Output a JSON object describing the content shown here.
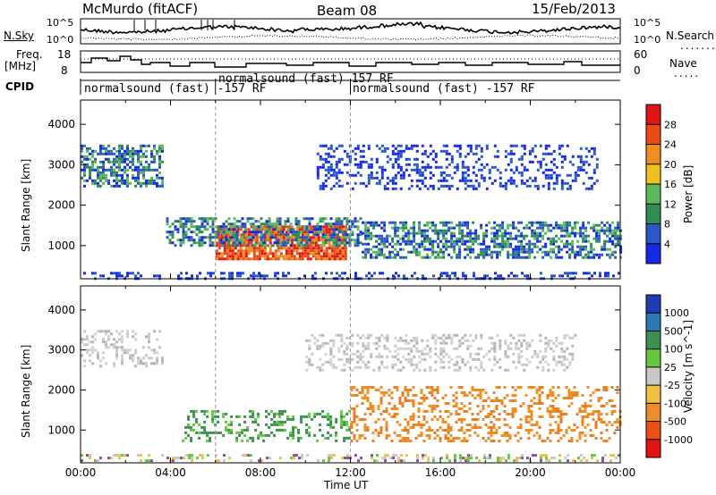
{
  "header": {
    "station": "McMurdo (fitACF)",
    "beam": "Beam 08",
    "date": "15/Feb/2013"
  },
  "top_panels": {
    "nsky_label": "N.Sky",
    "nsearch_label": "N.Search",
    "nsky_ticks": [
      "10^5",
      "10^0"
    ],
    "nsearch_ticks": [
      "10^5",
      "10^0"
    ],
    "freq_label_line1": "Freq.",
    "freq_label_line2": "[MHz]",
    "freq_ticks": [
      "18",
      "8"
    ],
    "nave_label": "Nave",
    "nave_ticks": [
      "60",
      "0"
    ],
    "cpid_label": "CPID",
    "cpid_segments": [
      "normalsound (fast) -157 RF",
      "normalsound (fast) 157 RF",
      "normalsound (fast) -157 RF"
    ]
  },
  "x_axis": {
    "label": "Time UT",
    "ticks": [
      "00:00",
      "04:00",
      "08:00",
      "12:00",
      "16:00",
      "20:00",
      "00:00"
    ]
  },
  "chart_data": [
    {
      "type": "heatmap",
      "title": "Power",
      "ylabel": "Slant Range [km]",
      "xlabel": "",
      "y_ticks": [
        1000,
        2000,
        3000,
        4000
      ],
      "ylim": [
        180,
        4600
      ],
      "x_range_hours": [
        0,
        24
      ],
      "colorbar_label": "Power [dB]",
      "colorbar_ticks": [
        4,
        8,
        12,
        16,
        20,
        24,
        28
      ],
      "colorbar_colors": [
        "#1428e6",
        "#2a58c8",
        "#2f8c55",
        "#5cb85c",
        "#f0c020",
        "#f08c20",
        "#ea4a14",
        "#e01414"
      ],
      "echo_regions": [
        {
          "t0": 6.0,
          "t1": 11.8,
          "r0": 650,
          "r1": 1500,
          "level": "high"
        },
        {
          "t0": 3.8,
          "t1": 12.5,
          "r0": 1000,
          "r1": 1700,
          "level": "mid"
        },
        {
          "t0": 12.5,
          "t1": 24.0,
          "r0": 700,
          "r1": 1600,
          "level": "mid"
        },
        {
          "t0": 0.0,
          "t1": 3.6,
          "r0": 2500,
          "r1": 3500,
          "level": "mid"
        },
        {
          "t0": 10.5,
          "t1": 23.0,
          "r0": 2400,
          "r1": 3500,
          "level": "low"
        },
        {
          "t0": 0.0,
          "t1": 24.0,
          "r0": 200,
          "r1": 350,
          "level": "low"
        }
      ]
    },
    {
      "type": "heatmap",
      "title": "Velocity",
      "ylabel": "Slant Range [km]",
      "xlabel": "Time UT",
      "y_ticks": [
        1000,
        2000,
        3000,
        4000
      ],
      "ylim": [
        180,
        4600
      ],
      "x_range_hours": [
        0,
        24
      ],
      "colorbar_label": "Velocity [m s^-1]",
      "colorbar_ticks": [
        1000,
        500,
        100,
        25,
        -25,
        -100,
        -500,
        -1000
      ],
      "colorbar_colors": [
        "#1e3cb4",
        "#2a78b4",
        "#3c9050",
        "#64c840",
        "#c8c8c8",
        "#f0c040",
        "#f08c28",
        "#ec5014",
        "#e01414"
      ],
      "echo_regions": [
        {
          "t0": 4.5,
          "t1": 12.0,
          "r0": 700,
          "r1": 1500,
          "level": "positive"
        },
        {
          "t0": 12.0,
          "t1": 24.0,
          "r0": 750,
          "r1": 2100,
          "level": "negative"
        },
        {
          "t0": 0.0,
          "t1": 3.6,
          "r0": 2600,
          "r1": 3500,
          "level": "neutral"
        },
        {
          "t0": 10.0,
          "t1": 22.0,
          "r0": 2500,
          "r1": 3400,
          "level": "neutral"
        },
        {
          "t0": 0.0,
          "t1": 24.0,
          "r0": 200,
          "r1": 400,
          "level": "mixed"
        }
      ]
    }
  ]
}
